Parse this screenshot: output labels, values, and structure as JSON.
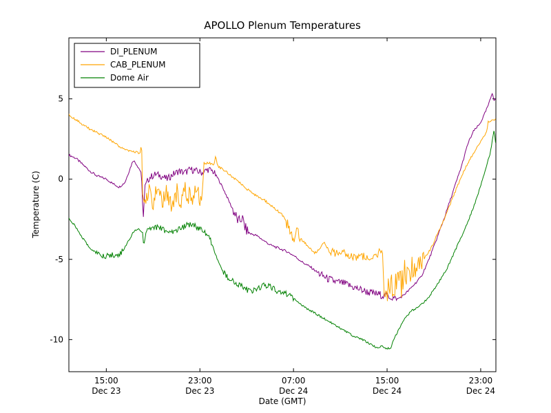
{
  "figure": {
    "background_color": "#ffffff",
    "axis_color": "#000000"
  },
  "chart_data": {
    "type": "line",
    "title": "APOLLO Plenum Temperatures",
    "xlabel": "Date (GMT)",
    "ylabel": "Temperature (C)",
    "x_unit": "hours since Dec 23 00:00 GMT",
    "xlim": [
      11.8,
      48.3
    ],
    "ylim": [
      -12.0,
      8.8
    ],
    "grid": false,
    "yticks": [
      5,
      0,
      -5,
      -10
    ],
    "xticks": [
      {
        "value": 15,
        "time": "15:00",
        "date": "Dec 23"
      },
      {
        "value": 23,
        "time": "23:00",
        "date": "Dec 23"
      },
      {
        "value": 31,
        "time": "07:00",
        "date": "Dec 24"
      },
      {
        "value": 39,
        "time": "15:00",
        "date": "Dec 24"
      },
      {
        "value": 47,
        "time": "23:00",
        "date": "Dec 24"
      }
    ],
    "legend": {
      "position": "upper left",
      "entries": [
        "DI_PLENUM",
        "CAB_PLENUM",
        "Dome Air"
      ]
    },
    "series": [
      {
        "name": "DI_PLENUM",
        "color": "#800080",
        "base_noise": 0.07,
        "noise": [
          [
            18.4,
            24.4,
            0.15
          ],
          [
            25.8,
            27.2,
            0.3
          ],
          [
            33.0,
            39.8,
            0.18
          ]
        ],
        "points": [
          [
            11.8,
            1.5
          ],
          [
            12.4,
            1.3
          ],
          [
            13.0,
            0.9
          ],
          [
            13.6,
            0.5
          ],
          [
            14.2,
            0.2
          ],
          [
            15.0,
            0.0
          ],
          [
            15.6,
            -0.3
          ],
          [
            16.1,
            -0.5
          ],
          [
            16.6,
            -0.2
          ],
          [
            17.0,
            0.6
          ],
          [
            17.3,
            1.2
          ],
          [
            17.6,
            0.9
          ],
          [
            18.0,
            0.4
          ],
          [
            18.15,
            -2.6
          ],
          [
            18.3,
            -0.4
          ],
          [
            18.7,
            0.1
          ],
          [
            19.2,
            0.3
          ],
          [
            19.7,
            0.2
          ],
          [
            20.2,
            0.0
          ],
          [
            20.7,
            0.3
          ],
          [
            21.2,
            0.5
          ],
          [
            21.7,
            0.4
          ],
          [
            22.2,
            0.6
          ],
          [
            22.7,
            0.5
          ],
          [
            23.2,
            0.4
          ],
          [
            23.7,
            0.6
          ],
          [
            24.1,
            0.5
          ],
          [
            24.5,
            0.1
          ],
          [
            25.0,
            -0.6
          ],
          [
            25.5,
            -1.4
          ],
          [
            26.0,
            -2.2
          ],
          [
            26.3,
            -2.7
          ],
          [
            26.6,
            -2.4
          ],
          [
            26.9,
            -3.1
          ],
          [
            27.3,
            -3.4
          ],
          [
            27.8,
            -3.5
          ],
          [
            28.4,
            -3.8
          ],
          [
            29.0,
            -4.1
          ],
          [
            29.7,
            -4.3
          ],
          [
            30.4,
            -4.5
          ],
          [
            31.1,
            -4.8
          ],
          [
            31.8,
            -5.2
          ],
          [
            32.5,
            -5.5
          ],
          [
            33.2,
            -5.9
          ],
          [
            33.9,
            -6.2
          ],
          [
            34.6,
            -6.4
          ],
          [
            35.3,
            -6.5
          ],
          [
            36.0,
            -6.7
          ],
          [
            36.8,
            -6.9
          ],
          [
            37.6,
            -7.1
          ],
          [
            38.4,
            -7.2
          ],
          [
            39.2,
            -7.3
          ],
          [
            39.8,
            -7.5
          ],
          [
            40.3,
            -7.3
          ],
          [
            40.9,
            -6.9
          ],
          [
            41.4,
            -6.5
          ],
          [
            41.9,
            -6.1
          ],
          [
            42.4,
            -5.3
          ],
          [
            42.9,
            -4.4
          ],
          [
            43.4,
            -3.4
          ],
          [
            43.9,
            -2.4
          ],
          [
            44.4,
            -1.3
          ],
          [
            44.9,
            -0.2
          ],
          [
            45.4,
            0.9
          ],
          [
            45.9,
            2.2
          ],
          [
            46.4,
            3.0
          ],
          [
            46.9,
            3.4
          ],
          [
            47.3,
            4.0
          ],
          [
            47.7,
            4.7
          ],
          [
            48.0,
            5.4
          ],
          [
            48.15,
            4.9
          ],
          [
            48.3,
            5.0
          ]
        ]
      },
      {
        "name": "CAB_PLENUM",
        "color": "#FFA500",
        "base_noise": 0.07,
        "noise": [
          [
            18.1,
            23.2,
            0.55
          ],
          [
            30.4,
            31.6,
            0.4
          ],
          [
            34.0,
            38.6,
            0.18
          ],
          [
            38.8,
            42.3,
            0.8
          ]
        ],
        "points": [
          [
            11.8,
            4.0
          ],
          [
            12.4,
            3.7
          ],
          [
            13.0,
            3.4
          ],
          [
            13.6,
            3.1
          ],
          [
            14.2,
            2.9
          ],
          [
            15.0,
            2.6
          ],
          [
            15.6,
            2.3
          ],
          [
            16.2,
            2.0
          ],
          [
            16.8,
            1.8
          ],
          [
            17.4,
            1.7
          ],
          [
            17.9,
            1.6
          ],
          [
            18.0,
            2.3
          ],
          [
            18.05,
            1.5
          ],
          [
            18.1,
            -1.0
          ],
          [
            18.3,
            -1.6
          ],
          [
            18.6,
            -0.8
          ],
          [
            19.0,
            -1.5
          ],
          [
            19.4,
            -0.7
          ],
          [
            19.8,
            -1.4
          ],
          [
            20.2,
            -0.9
          ],
          [
            20.6,
            -1.5
          ],
          [
            21.0,
            -0.8
          ],
          [
            21.4,
            -1.3
          ],
          [
            21.8,
            -0.7
          ],
          [
            22.2,
            -1.2
          ],
          [
            22.6,
            -0.8
          ],
          [
            23.0,
            -1.1
          ],
          [
            23.2,
            -0.9
          ],
          [
            23.35,
            1.0
          ],
          [
            23.8,
            1.0
          ],
          [
            24.2,
            0.9
          ],
          [
            24.35,
            1.4
          ],
          [
            24.5,
            0.8
          ],
          [
            25.0,
            0.6
          ],
          [
            25.5,
            0.3
          ],
          [
            26.0,
            0.0
          ],
          [
            26.5,
            -0.3
          ],
          [
            27.0,
            -0.6
          ],
          [
            27.5,
            -0.9
          ],
          [
            28.0,
            -1.1
          ],
          [
            28.5,
            -1.3
          ],
          [
            29.0,
            -1.6
          ],
          [
            29.5,
            -1.9
          ],
          [
            30.0,
            -2.2
          ],
          [
            30.4,
            -2.6
          ],
          [
            30.7,
            -3.3
          ],
          [
            31.0,
            -3.9
          ],
          [
            31.3,
            -3.4
          ],
          [
            31.6,
            -3.7
          ],
          [
            32.0,
            -4.0
          ],
          [
            32.4,
            -4.3
          ],
          [
            32.8,
            -4.6
          ],
          [
            33.2,
            -4.4
          ],
          [
            33.6,
            -3.9
          ],
          [
            34.0,
            -4.4
          ],
          [
            34.5,
            -4.6
          ],
          [
            35.0,
            -4.7
          ],
          [
            35.5,
            -4.6
          ],
          [
            36.0,
            -4.8
          ],
          [
            36.5,
            -4.9
          ],
          [
            37.0,
            -4.8
          ],
          [
            37.5,
            -5.0
          ],
          [
            38.0,
            -4.9
          ],
          [
            38.3,
            -4.6
          ],
          [
            38.6,
            -4.5
          ],
          [
            38.75,
            -7.2
          ],
          [
            39.0,
            -6.8
          ],
          [
            39.3,
            -6.2
          ],
          [
            39.6,
            -6.9
          ],
          [
            39.9,
            -5.9
          ],
          [
            40.2,
            -6.6
          ],
          [
            40.5,
            -5.6
          ],
          [
            40.8,
            -6.3
          ],
          [
            41.1,
            -5.3
          ],
          [
            41.4,
            -6.0
          ],
          [
            41.7,
            -5.0
          ],
          [
            42.0,
            -5.5
          ],
          [
            42.3,
            -4.8
          ],
          [
            42.7,
            -4.4
          ],
          [
            43.2,
            -3.6
          ],
          [
            43.7,
            -2.8
          ],
          [
            44.2,
            -1.9
          ],
          [
            44.7,
            -1.0
          ],
          [
            45.2,
            -0.1
          ],
          [
            45.7,
            0.7
          ],
          [
            46.2,
            1.4
          ],
          [
            46.7,
            2.0
          ],
          [
            47.1,
            2.5
          ],
          [
            47.5,
            2.9
          ],
          [
            47.65,
            3.6
          ],
          [
            47.9,
            3.6
          ],
          [
            48.1,
            3.7
          ],
          [
            48.3,
            3.7
          ]
        ]
      },
      {
        "name": "Dome Air",
        "color": "#008000",
        "base_noise": 0.06,
        "noise": [
          [
            14.0,
            16.4,
            0.12
          ],
          [
            18.4,
            24.0,
            0.12
          ],
          [
            25.0,
            31.0,
            0.12
          ]
        ],
        "points": [
          [
            11.8,
            -2.4
          ],
          [
            12.4,
            -3.0
          ],
          [
            13.0,
            -3.7
          ],
          [
            13.6,
            -4.3
          ],
          [
            14.2,
            -4.6
          ],
          [
            14.8,
            -4.8
          ],
          [
            15.4,
            -4.7
          ],
          [
            16.0,
            -4.8
          ],
          [
            16.5,
            -4.4
          ],
          [
            17.0,
            -3.7
          ],
          [
            17.4,
            -3.2
          ],
          [
            17.8,
            -3.1
          ],
          [
            18.1,
            -3.3
          ],
          [
            18.2,
            -4.2
          ],
          [
            18.4,
            -3.3
          ],
          [
            18.8,
            -3.1
          ],
          [
            19.3,
            -3.0
          ],
          [
            19.8,
            -3.1
          ],
          [
            20.3,
            -3.3
          ],
          [
            20.8,
            -3.3
          ],
          [
            21.3,
            -3.1
          ],
          [
            21.8,
            -2.9
          ],
          [
            22.3,
            -2.8
          ],
          [
            22.8,
            -3.0
          ],
          [
            23.3,
            -3.3
          ],
          [
            23.8,
            -3.6
          ],
          [
            24.2,
            -4.4
          ],
          [
            24.7,
            -5.4
          ],
          [
            25.2,
            -6.0
          ],
          [
            25.7,
            -6.3
          ],
          [
            26.2,
            -6.5
          ],
          [
            26.8,
            -6.8
          ],
          [
            27.3,
            -7.0
          ],
          [
            27.9,
            -6.9
          ],
          [
            28.4,
            -6.6
          ],
          [
            29.0,
            -6.7
          ],
          [
            29.6,
            -7.0
          ],
          [
            30.2,
            -7.1
          ],
          [
            30.8,
            -7.3
          ],
          [
            31.4,
            -7.7
          ],
          [
            32.0,
            -8.0
          ],
          [
            32.7,
            -8.3
          ],
          [
            33.4,
            -8.6
          ],
          [
            34.1,
            -8.9
          ],
          [
            34.8,
            -9.2
          ],
          [
            35.5,
            -9.5
          ],
          [
            36.2,
            -9.8
          ],
          [
            36.9,
            -10.0
          ],
          [
            37.6,
            -10.3
          ],
          [
            38.1,
            -10.5
          ],
          [
            38.5,
            -10.4
          ],
          [
            38.9,
            -10.6
          ],
          [
            39.3,
            -10.5
          ],
          [
            39.7,
            -9.8
          ],
          [
            40.1,
            -9.2
          ],
          [
            40.6,
            -8.6
          ],
          [
            41.1,
            -8.2
          ],
          [
            41.6,
            -8.0
          ],
          [
            42.1,
            -7.7
          ],
          [
            42.6,
            -7.3
          ],
          [
            43.1,
            -6.8
          ],
          [
            43.6,
            -6.2
          ],
          [
            44.1,
            -5.6
          ],
          [
            44.6,
            -4.8
          ],
          [
            45.1,
            -4.0
          ],
          [
            45.6,
            -3.2
          ],
          [
            46.1,
            -2.3
          ],
          [
            46.6,
            -1.3
          ],
          [
            47.0,
            -0.4
          ],
          [
            47.4,
            0.6
          ],
          [
            47.8,
            1.6
          ],
          [
            48.0,
            2.4
          ],
          [
            48.15,
            3.1
          ],
          [
            48.3,
            2.1
          ]
        ]
      }
    ]
  }
}
